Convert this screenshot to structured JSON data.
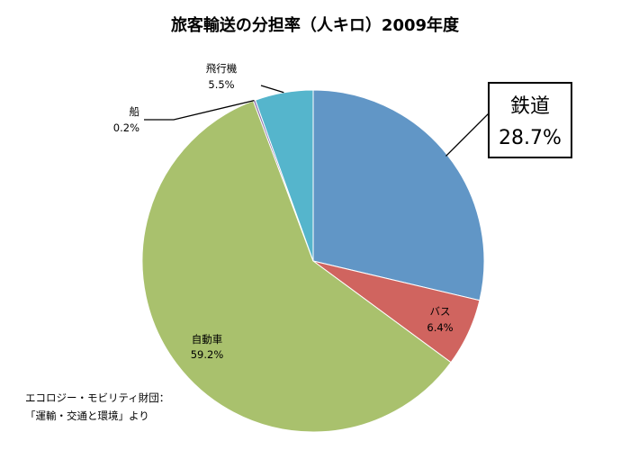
{
  "chart_data": {
    "type": "pie",
    "title": "旅客輸送の分担率（人キロ）2009年度",
    "slices": [
      {
        "label": "鉄道",
        "value": 28.7,
        "value_text": "28.7%",
        "color": "#6196c6"
      },
      {
        "label": "バス",
        "value": 6.4,
        "value_text": "6.4%",
        "color": "#d0645f"
      },
      {
        "label": "自動車",
        "value": 59.2,
        "value_text": "59.2%",
        "color": "#a9c16d"
      },
      {
        "label": "船",
        "value": 0.2,
        "value_text": "0.2%",
        "color": "#8a6ea8"
      },
      {
        "label": "飛行機",
        "value": 5.5,
        "value_text": "5.5%",
        "color": "#55b5cc"
      }
    ],
    "start_angle": "12 o'clock",
    "direction": "clockwise",
    "note_lines": [
      "エコロジー・モビリティ財団：",
      "「運輸・交通と環境」より"
    ]
  }
}
